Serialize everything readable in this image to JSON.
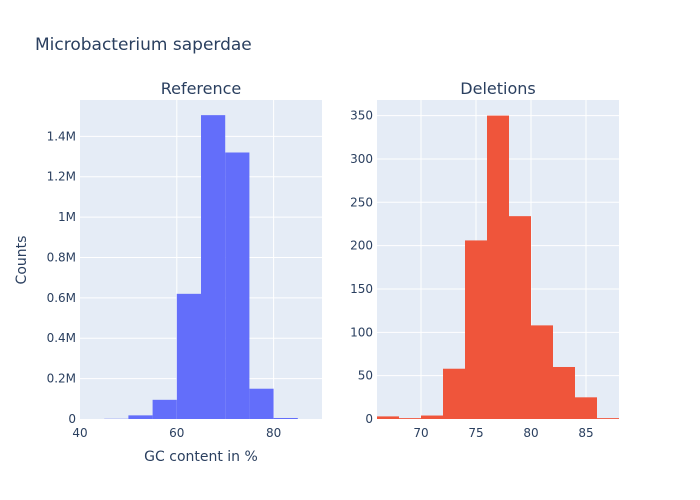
{
  "chart_data": {
    "title": "Microbacterium saperdae",
    "ylabel": "Counts",
    "xlabel": "GC content in %",
    "subplots": [
      {
        "type": "bar",
        "title": "Reference",
        "color": "#636efa",
        "xlim": [
          40,
          90
        ],
        "ylim": [
          0,
          1580000
        ],
        "xticks": [
          40,
          60,
          80
        ],
        "xtick_labels": [
          "40",
          "60",
          "80"
        ],
        "yticks": [
          0,
          200000,
          400000,
          600000,
          800000,
          1000000,
          1200000,
          1400000
        ],
        "ytick_labels": [
          "0",
          "0.2M",
          "0.4M",
          "0.6M",
          "0.8M",
          "1M",
          "1.2M",
          "1.4M"
        ],
        "bins": [
          {
            "x0": 45,
            "x1": 50,
            "value": 1000
          },
          {
            "x0": 50,
            "x1": 55,
            "value": 18000
          },
          {
            "x0": 55,
            "x1": 60,
            "value": 95000
          },
          {
            "x0": 60,
            "x1": 65,
            "value": 620000
          },
          {
            "x0": 65,
            "x1": 70,
            "value": 1505000
          },
          {
            "x0": 70,
            "x1": 75,
            "value": 1320000
          },
          {
            "x0": 75,
            "x1": 80,
            "value": 150000
          },
          {
            "x0": 80,
            "x1": 85,
            "value": 5000
          }
        ]
      },
      {
        "type": "bar",
        "title": "Deletions",
        "color": "#ef553b",
        "xlim": [
          66,
          88
        ],
        "ylim": [
          0,
          368
        ],
        "xticks": [
          70,
          75,
          80,
          85
        ],
        "xtick_labels": [
          "70",
          "75",
          "80",
          "85"
        ],
        "yticks": [
          0,
          50,
          100,
          150,
          200,
          250,
          300,
          350
        ],
        "ytick_labels": [
          "0",
          "50",
          "100",
          "150",
          "200",
          "250",
          "300",
          "350"
        ],
        "bins": [
          {
            "x0": 66,
            "x1": 68,
            "value": 3
          },
          {
            "x0": 68,
            "x1": 70,
            "value": 1
          },
          {
            "x0": 70,
            "x1": 72,
            "value": 4
          },
          {
            "x0": 72,
            "x1": 74,
            "value": 58
          },
          {
            "x0": 74,
            "x1": 76,
            "value": 206
          },
          {
            "x0": 76,
            "x1": 78,
            "value": 350
          },
          {
            "x0": 78,
            "x1": 80,
            "value": 234
          },
          {
            "x0": 80,
            "x1": 82,
            "value": 108
          },
          {
            "x0": 82,
            "x1": 84,
            "value": 60
          },
          {
            "x0": 84,
            "x1": 86,
            "value": 25
          },
          {
            "x0": 86,
            "x1": 88,
            "value": 1
          }
        ]
      }
    ]
  }
}
